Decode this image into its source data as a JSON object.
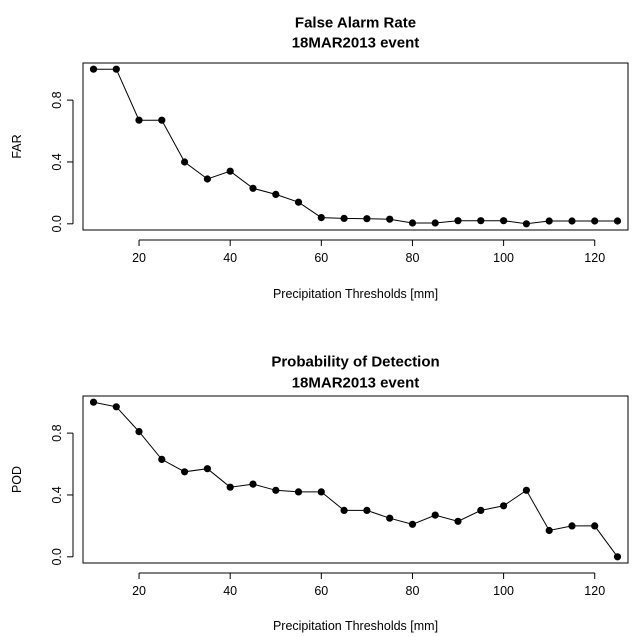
{
  "chart_data": [
    {
      "type": "line",
      "title": "False Alarm Rate",
      "subtitle": "18MAR2013 event",
      "xlabel": "Precipitation Thresholds [mm]",
      "ylabel": "FAR",
      "xlim": [
        10,
        125
      ],
      "ylim": [
        0,
        1
      ],
      "x_ticks": [
        "20",
        "40",
        "60",
        "80",
        "100",
        "120"
      ],
      "y_ticks": [
        "0.0",
        "0.4",
        "0.8"
      ],
      "grid": false,
      "x": [
        10,
        15,
        20,
        25,
        30,
        35,
        40,
        45,
        50,
        55,
        60,
        65,
        70,
        75,
        80,
        85,
        90,
        95,
        100,
        105,
        110,
        115,
        120,
        125
      ],
      "series": [
        {
          "values": [
            1.0,
            1.0,
            0.67,
            0.67,
            0.4,
            0.29,
            0.34,
            0.23,
            0.19,
            0.14,
            0.04,
            0.035,
            0.033,
            0.03,
            0.005,
            0.005,
            0.02,
            0.02,
            0.02,
            0.0,
            0.018,
            0.018,
            0.018,
            0.018
          ]
        }
      ]
    },
    {
      "type": "line",
      "title": "Probability of Detection",
      "subtitle": "18MAR2013 event",
      "xlabel": "Precipitation Thresholds [mm]",
      "ylabel": "POD",
      "xlim": [
        10,
        125
      ],
      "ylim": [
        0,
        1
      ],
      "x_ticks": [
        "20",
        "40",
        "60",
        "80",
        "100",
        "120"
      ],
      "y_ticks": [
        "0.0",
        "0.4",
        "0.8"
      ],
      "grid": false,
      "x": [
        10,
        15,
        20,
        25,
        30,
        35,
        40,
        45,
        50,
        55,
        60,
        65,
        70,
        75,
        80,
        85,
        90,
        95,
        100,
        105,
        110,
        115,
        120,
        125
      ],
      "series": [
        {
          "values": [
            1.0,
            0.97,
            0.81,
            0.63,
            0.55,
            0.57,
            0.45,
            0.47,
            0.43,
            0.42,
            0.42,
            0.3,
            0.3,
            0.25,
            0.21,
            0.27,
            0.23,
            0.3,
            0.33,
            0.43,
            0.17,
            0.2,
            0.2,
            0.0
          ]
        }
      ]
    }
  ]
}
